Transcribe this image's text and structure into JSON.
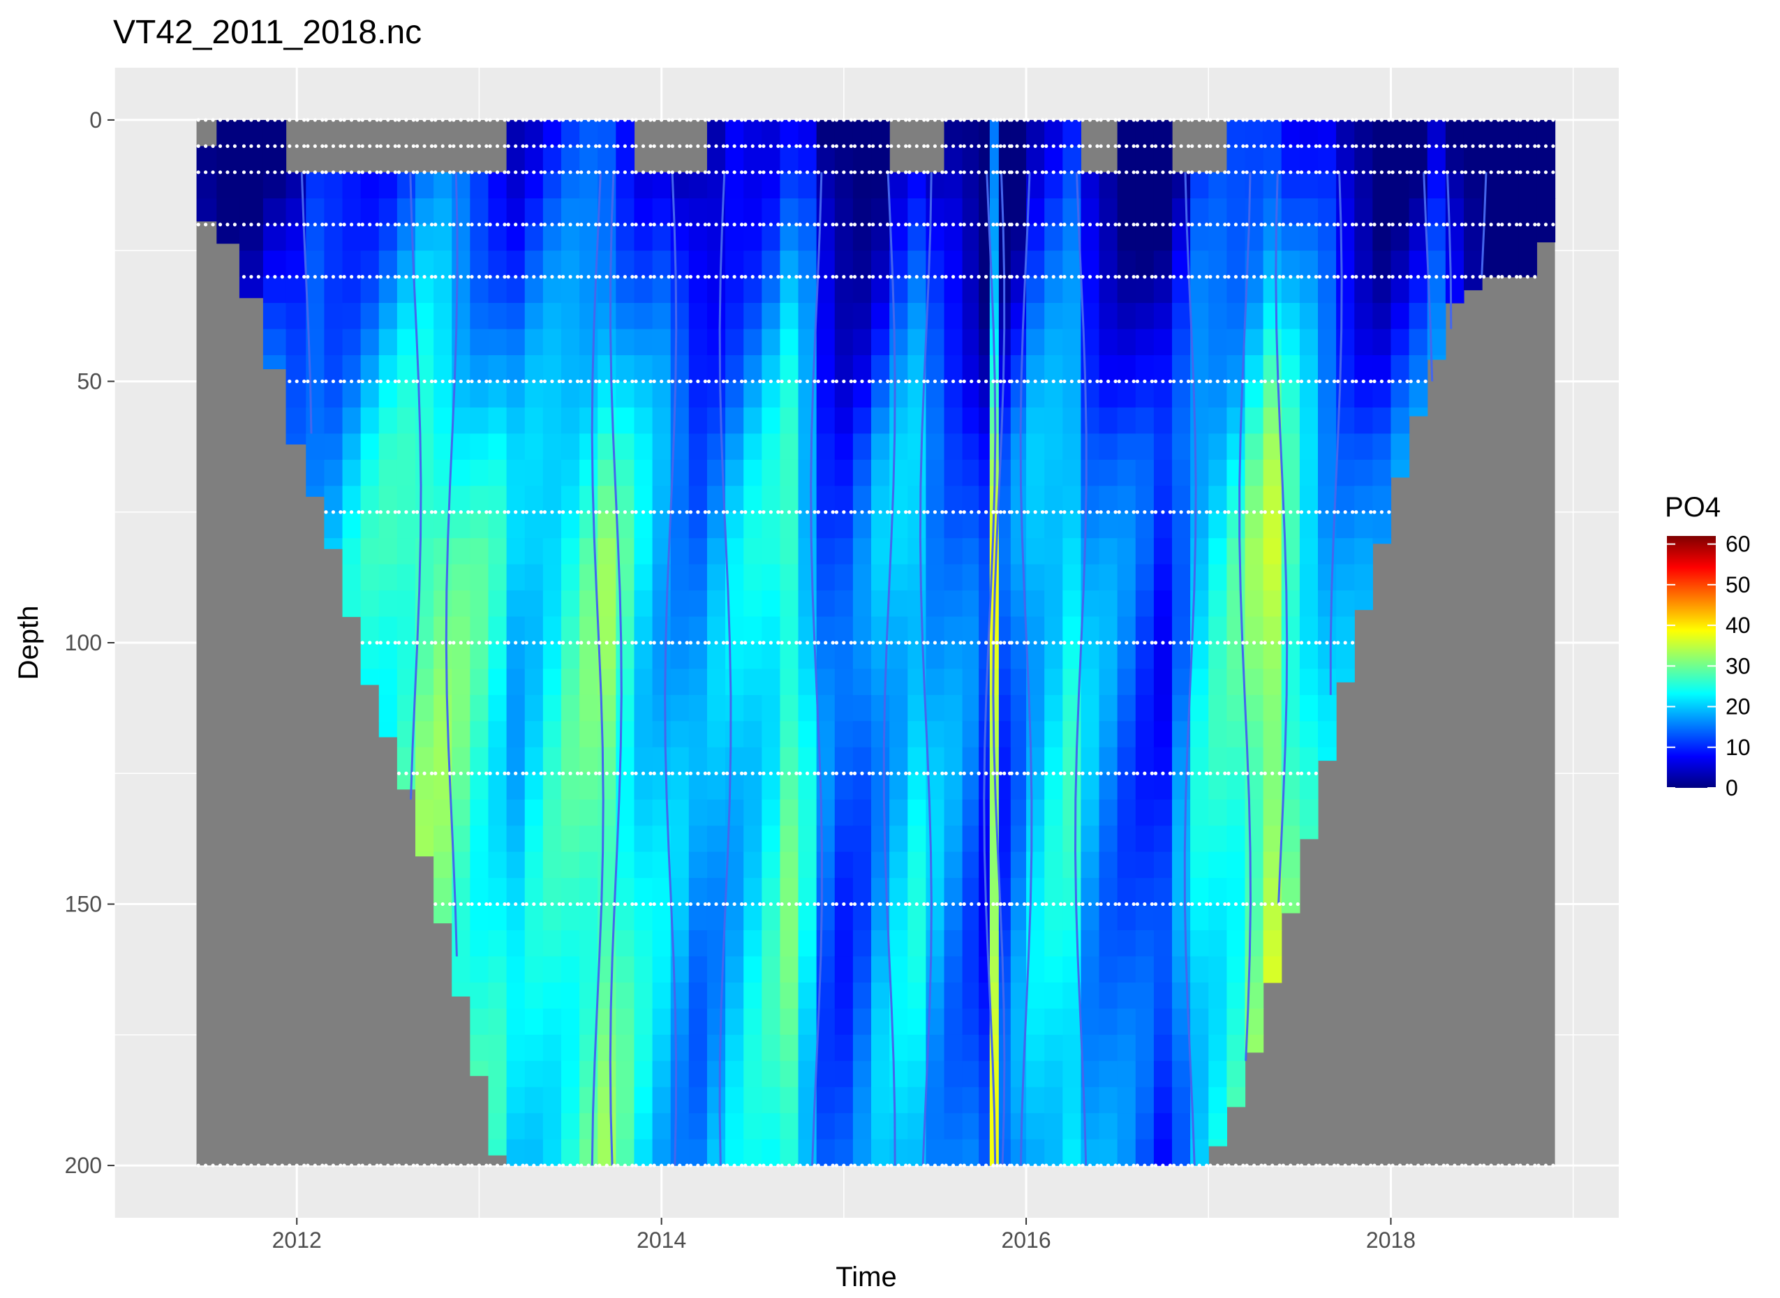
{
  "chart_data": {
    "type": "heatmap",
    "title": "VT42_2011_2018.nc",
    "xlabel": "Time",
    "ylabel": "Depth",
    "xlim": [
      2011.0,
      2019.25
    ],
    "ylim": [
      210,
      -10
    ],
    "y_reversed": true,
    "x_ticks": [
      2012,
      2014,
      2016,
      2018
    ],
    "x_tick_labels": [
      "2012",
      "2014",
      "2016",
      "2018"
    ],
    "y_ticks": [
      0,
      50,
      100,
      150,
      200
    ],
    "y_tick_labels": [
      "0",
      "50",
      "100",
      "150",
      "200"
    ],
    "grid": true,
    "panel_background": "#ebebeb",
    "missing_color": "#7f7f7f",
    "contour_color": "#4466ee",
    "contour_levels": [
      10,
      20,
      30,
      40,
      50
    ],
    "sample_marker_color": "#ffffff",
    "colorscale": [
      "#00007f",
      "#0000ff",
      "#007fff",
      "#00ffff",
      "#7fff7f",
      "#ffff00",
      "#ff7f00",
      "#ff0000",
      "#7f0000"
    ],
    "legend": {
      "title": "PO4",
      "position": "right",
      "min": 0,
      "max": 62,
      "ticks": [
        0,
        10,
        20,
        30,
        40,
        50,
        60
      ],
      "tick_labels": [
        "0",
        "10",
        "20",
        "30",
        "40",
        "50",
        "60"
      ]
    },
    "data_extent": {
      "time": [
        2011.45,
        2018.9
      ],
      "depth": [
        0,
        200
      ]
    },
    "sample_depths": [
      0,
      5,
      10,
      20,
      30,
      50,
      75,
      100,
      125,
      150,
      200
    ],
    "bottom_profile": [
      [
        2011.45,
        18
      ],
      [
        2011.6,
        22
      ],
      [
        2011.8,
        38
      ],
      [
        2012.0,
        62
      ],
      [
        2012.2,
        82
      ],
      [
        2012.4,
        108
      ],
      [
        2012.6,
        128
      ],
      [
        2012.85,
        160
      ],
      [
        2013.1,
        198
      ],
      [
        2013.2,
        200
      ],
      [
        2017.0,
        200
      ],
      [
        2017.2,
        185
      ],
      [
        2017.5,
        145
      ],
      [
        2017.8,
        100
      ],
      [
        2018.1,
        62
      ],
      [
        2018.35,
        35
      ],
      [
        2018.55,
        30
      ],
      [
        2018.75,
        30
      ],
      [
        2018.9,
        20
      ]
    ],
    "surface_gaps": [
      [
        2011.45,
        2011.6,
        5
      ],
      [
        2012.0,
        2013.1,
        10
      ],
      [
        2013.85,
        2014.2,
        10
      ],
      [
        2015.3,
        2015.5,
        10
      ],
      [
        2016.3,
        2016.5,
        10
      ],
      [
        2016.85,
        2017.1,
        10
      ]
    ],
    "time_columns": [
      [
        2011.5,
        12
      ],
      [
        2011.62,
        14
      ],
      [
        2011.75,
        16
      ],
      [
        2011.88,
        18
      ],
      [
        2012.0,
        16
      ],
      [
        2012.1,
        20
      ],
      [
        2012.2,
        20
      ],
      [
        2012.3,
        22
      ],
      [
        2012.4,
        24
      ],
      [
        2012.5,
        26
      ],
      [
        2012.6,
        28
      ],
      [
        2012.7,
        30
      ],
      [
        2012.8,
        30
      ],
      [
        2012.9,
        28
      ],
      [
        2013.0,
        26
      ],
      [
        2013.1,
        24
      ],
      [
        2013.2,
        20
      ],
      [
        2013.3,
        22
      ],
      [
        2013.4,
        24
      ],
      [
        2013.5,
        26
      ],
      [
        2013.6,
        28
      ],
      [
        2013.7,
        30
      ],
      [
        2013.8,
        26
      ],
      [
        2013.9,
        22
      ],
      [
        2014.0,
        20
      ],
      [
        2014.1,
        18
      ],
      [
        2014.2,
        16
      ],
      [
        2014.3,
        18
      ],
      [
        2014.4,
        20
      ],
      [
        2014.5,
        22
      ],
      [
        2014.6,
        24
      ],
      [
        2014.7,
        28
      ],
      [
        2014.8,
        22
      ],
      [
        2014.9,
        14
      ],
      [
        2015.0,
        12
      ],
      [
        2015.1,
        14
      ],
      [
        2015.2,
        18
      ],
      [
        2015.3,
        20
      ],
      [
        2015.4,
        22
      ],
      [
        2015.5,
        18
      ],
      [
        2015.6,
        16
      ],
      [
        2015.7,
        14
      ],
      [
        2015.78,
        10
      ],
      [
        2015.82,
        35
      ],
      [
        2015.88,
        12
      ],
      [
        2015.95,
        16
      ],
      [
        2016.05,
        20
      ],
      [
        2016.15,
        22
      ],
      [
        2016.25,
        24
      ],
      [
        2016.35,
        18
      ],
      [
        2016.45,
        16
      ],
      [
        2016.55,
        14
      ],
      [
        2016.65,
        12
      ],
      [
        2016.75,
        10
      ],
      [
        2016.85,
        16
      ],
      [
        2016.95,
        22
      ],
      [
        2017.05,
        24
      ],
      [
        2017.15,
        26
      ],
      [
        2017.25,
        30
      ],
      [
        2017.35,
        34
      ],
      [
        2017.45,
        28
      ],
      [
        2017.55,
        24
      ],
      [
        2017.65,
        20
      ],
      [
        2017.75,
        18
      ],
      [
        2017.85,
        16
      ],
      [
        2017.95,
        14
      ],
      [
        2018.05,
        16
      ],
      [
        2018.15,
        18
      ],
      [
        2018.25,
        20
      ],
      [
        2018.35,
        14
      ],
      [
        2018.45,
        10
      ],
      [
        2018.55,
        8
      ],
      [
        2018.65,
        6
      ],
      [
        2018.75,
        6
      ],
      [
        2018.85,
        8
      ]
    ]
  }
}
